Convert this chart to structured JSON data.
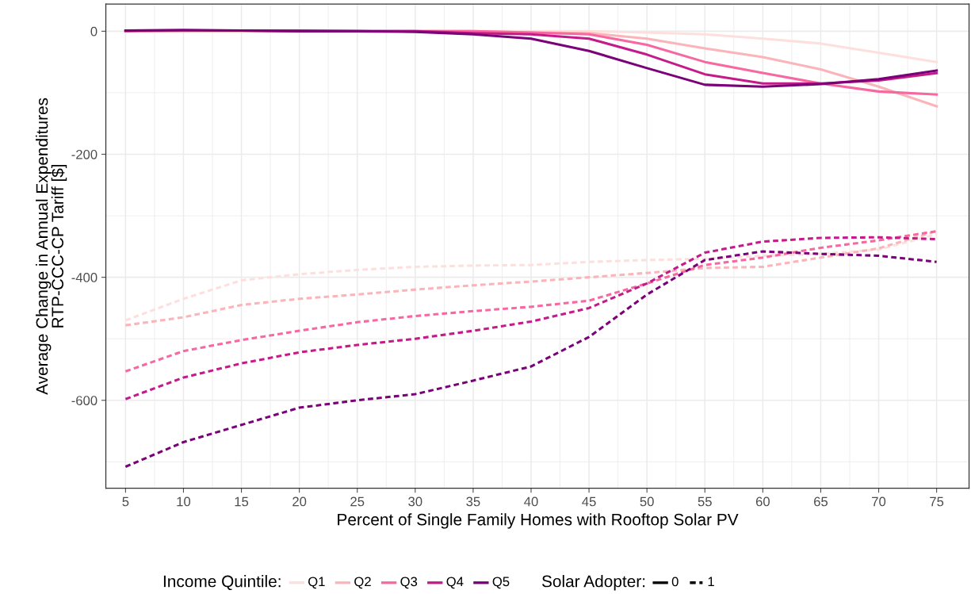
{
  "chart_data": {
    "type": "line",
    "xlabel": "Percent of Single Family Homes with Rooftop Solar PV",
    "ylabel": "Average Change in Annual Expenditures\nRTP-CCC-CP Tariff [$]",
    "x": [
      5,
      10,
      15,
      20,
      25,
      30,
      35,
      40,
      45,
      50,
      55,
      60,
      65,
      70,
      75
    ],
    "xlim": [
      3.3,
      77.8
    ],
    "xticks": [
      5,
      10,
      15,
      20,
      25,
      30,
      35,
      40,
      45,
      50,
      55,
      60,
      65,
      70,
      75
    ],
    "ylim": [
      -743,
      44
    ],
    "yticks": [
      -600,
      -400,
      -200,
      0
    ],
    "grid": true,
    "legend": "bottom",
    "legend_title": [
      "Income Quintile:",
      "Solar Adopter:"
    ],
    "annotations": [
      "0",
      "1"
    ],
    "series": [
      {
        "name": "Q1",
        "color": "#fde0dd",
        "line_style": "solid",
        "values": [
          0,
          0,
          0,
          0,
          0,
          0,
          0,
          0,
          0,
          -2,
          -5,
          -12,
          -20,
          -35,
          -50
        ]
      },
      {
        "name": "Q2",
        "color": "#fbb4b9",
        "line_style": "solid",
        "values": [
          0,
          0,
          0,
          0,
          0,
          0,
          0,
          -2,
          -3,
          -12,
          -28,
          -42,
          -62,
          -90,
          -122
        ]
      },
      {
        "name": "Q3",
        "color": "#f768a1",
        "line_style": "solid",
        "values": [
          0,
          1,
          1,
          0,
          0,
          0,
          0,
          -2,
          -5,
          -22,
          -50,
          -68,
          -85,
          -98,
          -103
        ]
      },
      {
        "name": "Q4",
        "color": "#c51b8a",
        "line_style": "solid",
        "values": [
          1,
          1,
          1,
          1,
          0,
          0,
          -3,
          -5,
          -12,
          -38,
          -70,
          -85,
          -85,
          -80,
          -68
        ]
      },
      {
        "name": "Q5",
        "color": "#7a0177",
        "line_style": "solid",
        "values": [
          1,
          2,
          1,
          0,
          0,
          -1,
          -5,
          -12,
          -32,
          -60,
          -87,
          -90,
          -86,
          -78,
          -64
        ]
      },
      {
        "color": "#fde0dd",
        "line_style": "dashed",
        "values": [
          -470,
          -435,
          -405,
          -395,
          -388,
          -383,
          -381,
          -380,
          -375,
          -372,
          -370,
          -365,
          -362,
          -355,
          -330
        ]
      },
      {
        "color": "#fbb4b9",
        "line_style": "dashed",
        "values": [
          -478,
          -465,
          -445,
          -435,
          -428,
          -420,
          -413,
          -407,
          -400,
          -393,
          -385,
          -383,
          -368,
          -353,
          -325
        ]
      },
      {
        "color": "#f768a1",
        "line_style": "dashed",
        "values": [
          -553,
          -520,
          -502,
          -487,
          -473,
          -463,
          -455,
          -448,
          -438,
          -410,
          -380,
          -368,
          -352,
          -340,
          -325
        ]
      },
      {
        "color": "#c51b8a",
        "line_style": "dashed",
        "values": [
          -598,
          -563,
          -540,
          -522,
          -510,
          -500,
          -487,
          -472,
          -450,
          -410,
          -360,
          -342,
          -336,
          -335,
          -338
        ]
      },
      {
        "color": "#7a0177",
        "line_style": "dashed",
        "values": [
          -708,
          -668,
          -640,
          -612,
          -600,
          -590,
          -568,
          -545,
          -497,
          -428,
          -372,
          -358,
          -362,
          -365,
          -375
        ]
      }
    ]
  }
}
